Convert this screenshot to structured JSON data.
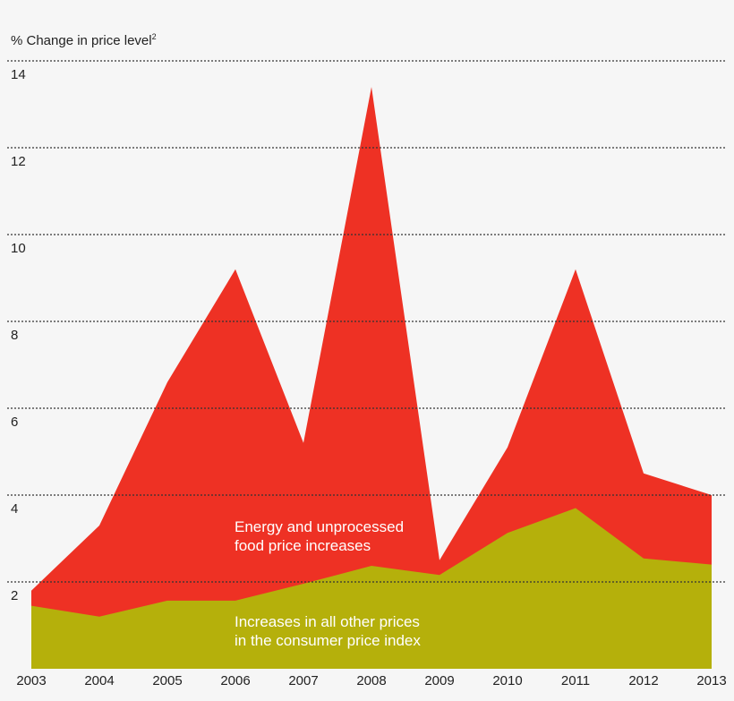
{
  "chart_data": {
    "type": "area",
    "stacked": true,
    "ylabel": "% Change in price level",
    "ylabel_footnote": "2",
    "x": [
      "2003",
      "2004",
      "2005",
      "2006",
      "2007",
      "2008",
      "2009",
      "2010",
      "2011",
      "2012",
      "2013"
    ],
    "ylim": [
      0,
      14
    ],
    "yticks": [
      2,
      4,
      6,
      8,
      10,
      12,
      14
    ],
    "grid": "horizontal dotted",
    "series": [
      {
        "name": "Increases in all other prices in the consumer price index",
        "label_lines": [
          "Increases in all other prices",
          "in the consumer price index"
        ],
        "color": "#b5b00b",
        "totals": [
          1.45,
          1.2,
          1.57,
          1.57,
          1.96,
          2.37,
          2.16,
          3.13,
          3.7,
          2.54,
          2.4
        ]
      },
      {
        "name": "Energy and unprocessed food price increases",
        "label_lines": [
          "Energy and unprocessed",
          "food price increases"
        ],
        "color": "#ee3124",
        "totals": [
          1.8,
          3.3,
          6.6,
          9.2,
          5.2,
          13.4,
          2.5,
          5.1,
          9.2,
          4.5,
          4.0
        ]
      }
    ]
  }
}
